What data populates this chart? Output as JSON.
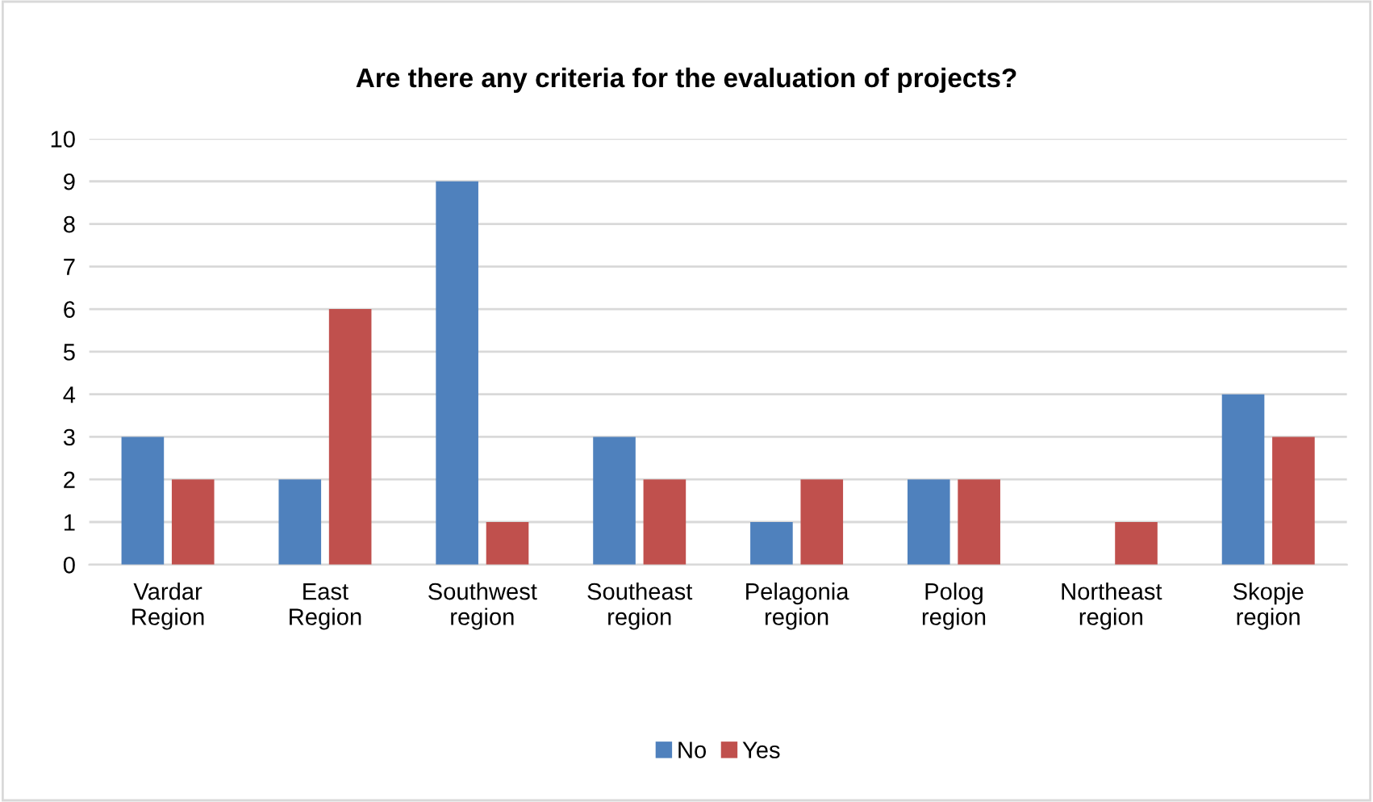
{
  "chart_data": {
    "type": "bar",
    "title": "Are there any criteria for the evaluation of projects?",
    "categories": [
      "Vardar\nRegion",
      "East\nRegion",
      "Southwest\nregion",
      "Southeast\nregion",
      "Pelagonia\nregion",
      "Polog\nregion",
      "Northeast\nregion",
      "Skopje\nregion"
    ],
    "series": [
      {
        "name": "No",
        "color": "#4f81bd",
        "values": [
          3,
          2,
          9,
          3,
          1,
          2,
          0,
          4
        ]
      },
      {
        "name": "Yes",
        "color": "#c0504d",
        "values": [
          2,
          6,
          1,
          2,
          2,
          2,
          1,
          3
        ]
      }
    ],
    "ylim": [
      0,
      10
    ],
    "yticks": [
      0,
      1,
      2,
      3,
      4,
      5,
      6,
      7,
      8,
      9,
      10
    ],
    "grid": "y",
    "legend": "bottom"
  }
}
